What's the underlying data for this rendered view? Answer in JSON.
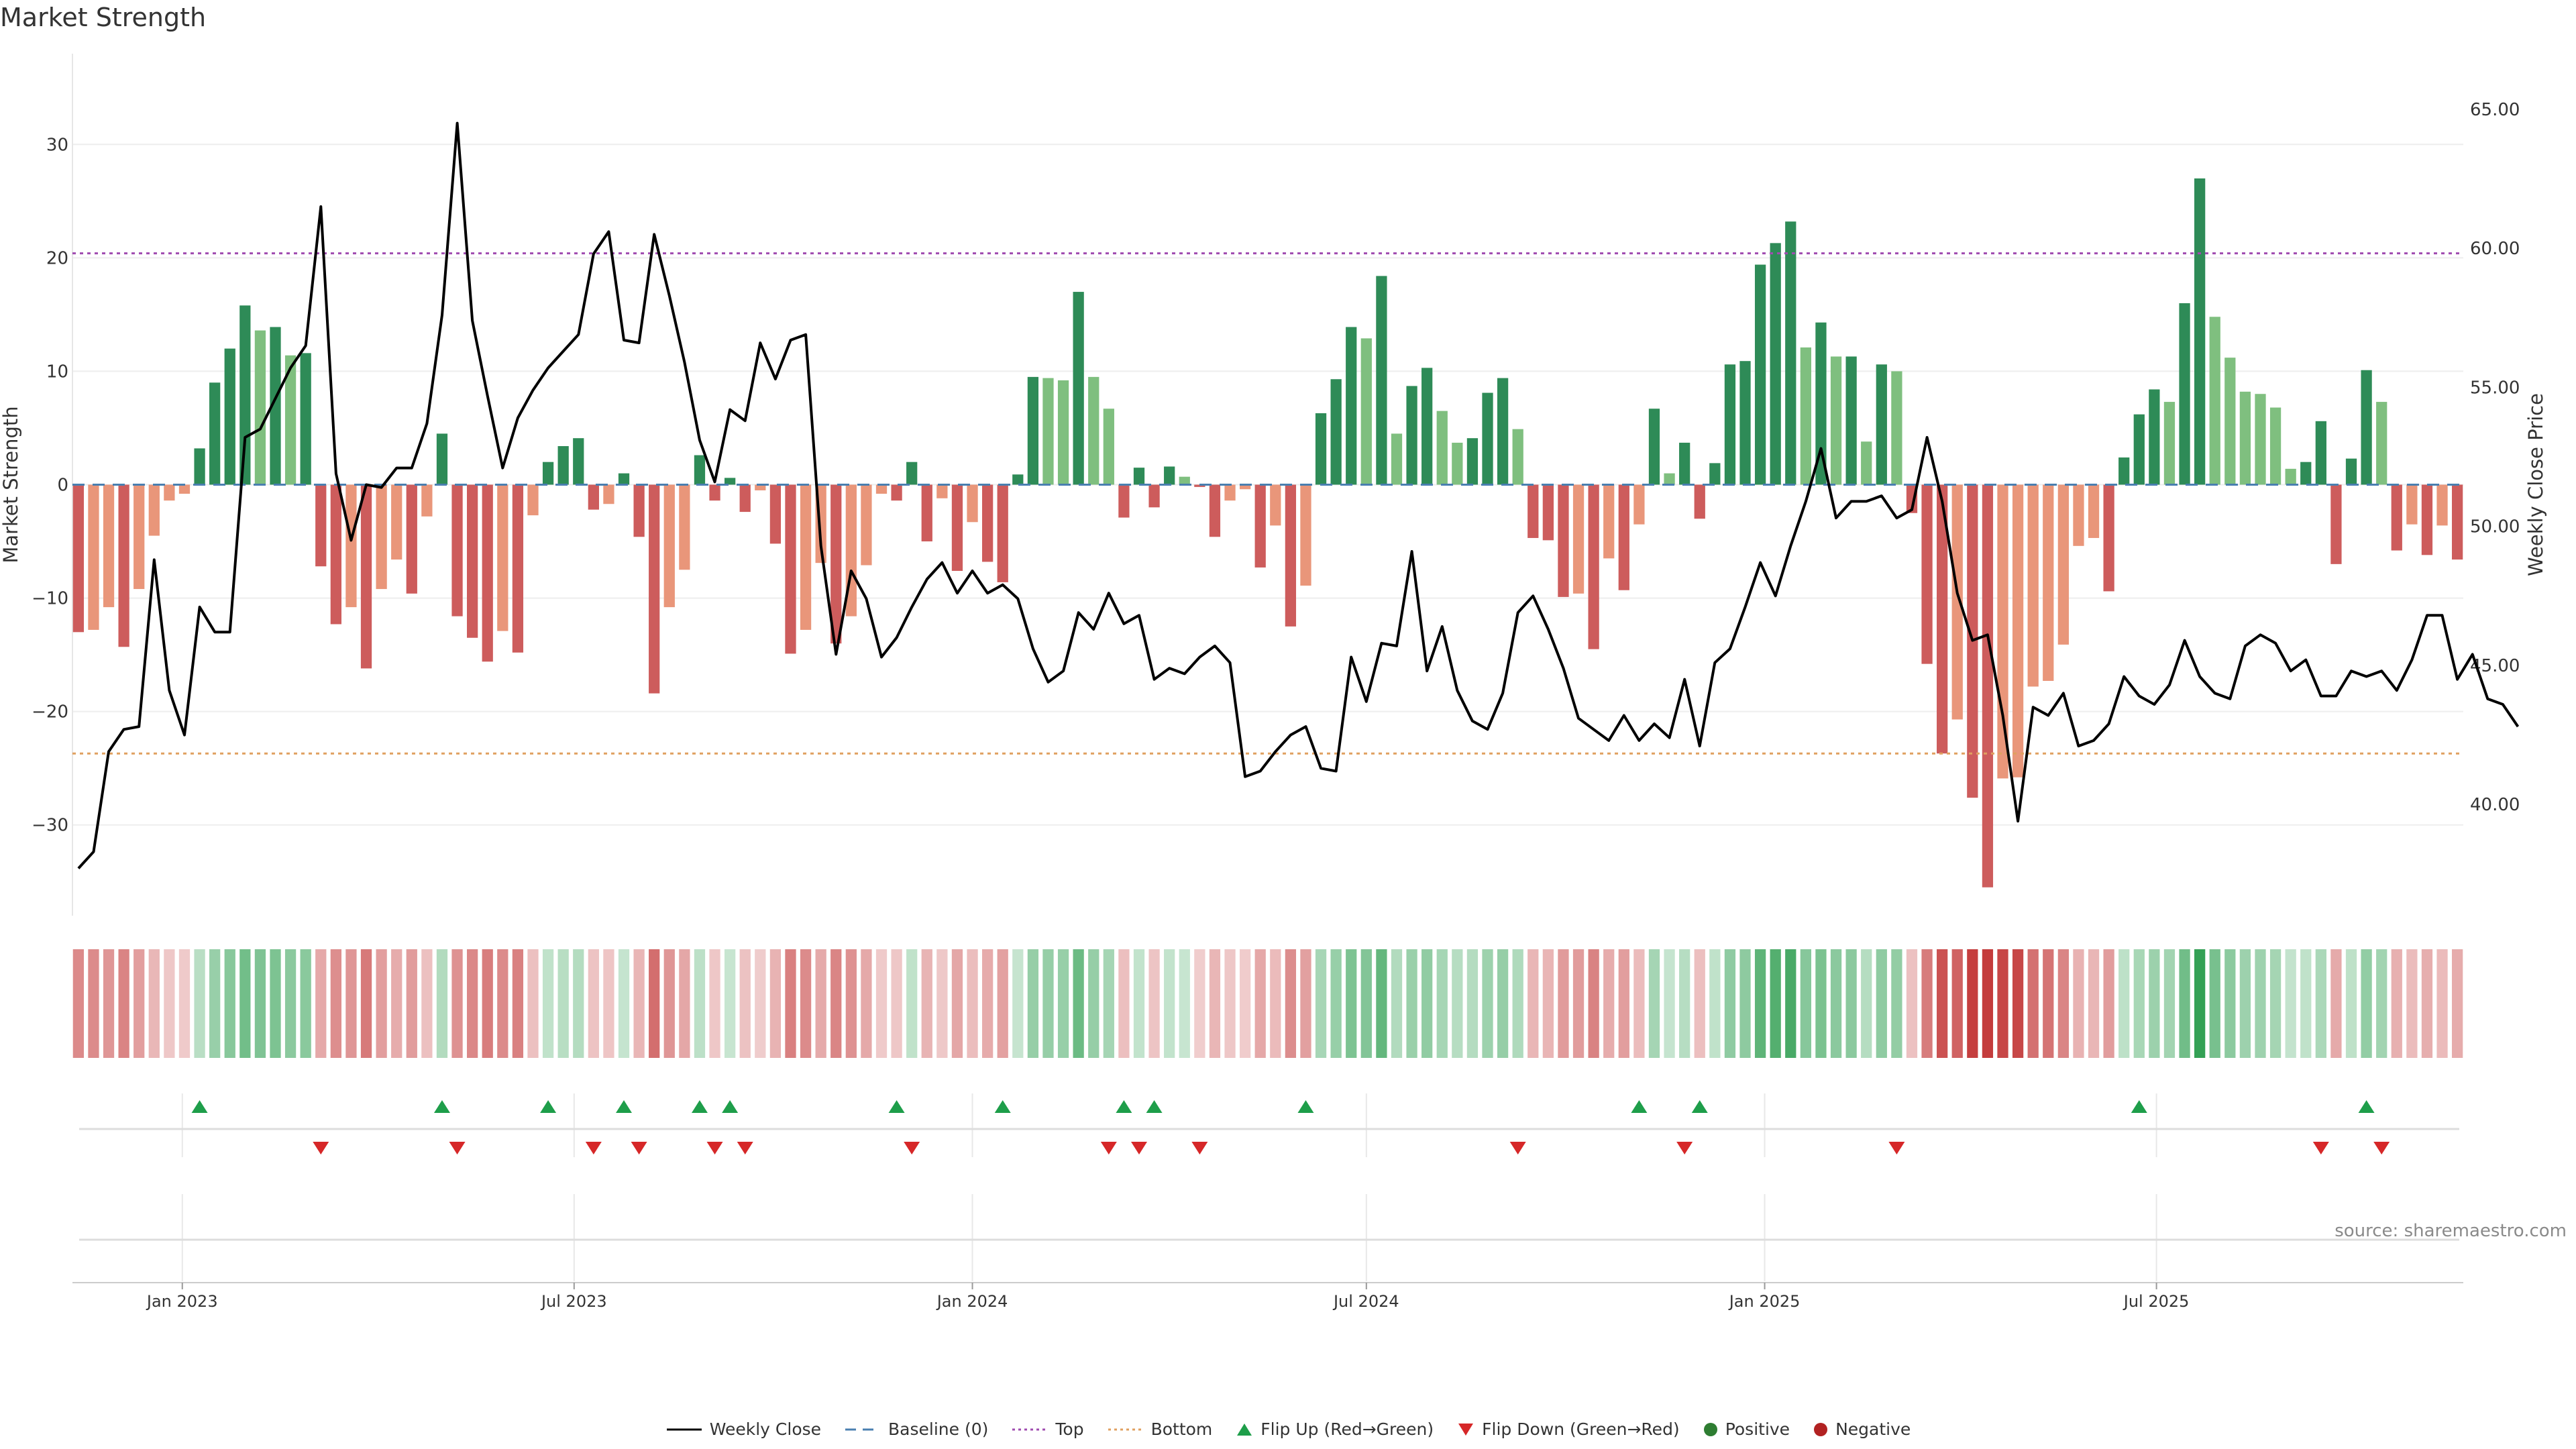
{
  "title": "Market Strength",
  "source": "source: sharemaestro.com",
  "legend": {
    "weekly_close": "Weekly Close",
    "baseline": "Baseline (0)",
    "top": "Top",
    "bottom": "Bottom",
    "flip_up": "Flip Up (Red→Green)",
    "flip_down": "Flip Down (Green→Red)",
    "positive": "Positive",
    "negative": "Negative"
  },
  "colors": {
    "pos_strong": "#2e8b57",
    "pos_light": "#7fbf7f",
    "neg_strong": "#cd5c5c",
    "neg_light": "#e9967a",
    "line": "#000000",
    "baseline": "#4a7fb0",
    "top": "#a04cb0",
    "bottom": "#e0a060",
    "flip_up": "#1e9e4a",
    "flip_down": "#d62728",
    "positive_dot": "#2e7d32",
    "negative_dot": "#b22222"
  },
  "chart_data": {
    "type": "bar",
    "title": "Market Strength",
    "ylabel": "Market Strength",
    "y2label": "Weekly Close Price",
    "ylim": [
      -38,
      38
    ],
    "y2lim": [
      36,
      67
    ],
    "yticks": [
      -30,
      -20,
      -10,
      0,
      10,
      20,
      30
    ],
    "y2ticks": [
      "40.00",
      "45.00",
      "50.00",
      "55.00",
      "60.00",
      "65.00"
    ],
    "x_start": "2022-11-14",
    "x_step_days": 7,
    "x_end": "2025-11-17",
    "x_tick_labels": [
      {
        "date": "2023-01-01",
        "label": "Jan 2023"
      },
      {
        "date": "2023-07-01",
        "label": "Jul 2023"
      },
      {
        "date": "2024-01-01",
        "label": "Jan 2024"
      },
      {
        "date": "2024-07-01",
        "label": "Jul 2024"
      },
      {
        "date": "2025-01-01",
        "label": "Jan 2025"
      },
      {
        "date": "2025-07-01",
        "label": "Jul 2025"
      }
    ],
    "top_threshold": 20.4,
    "bottom_threshold": -23.7,
    "baseline": 0,
    "strength": [
      -13,
      -12.8,
      -10.8,
      -14.3,
      -9.2,
      -4.5,
      -1.4,
      -0.8,
      3.2,
      9,
      12,
      15.8,
      13.6,
      13.9,
      11.4,
      11.6,
      -7.2,
      -12.3,
      -10.8,
      -16.2,
      -9.2,
      -6.6,
      -9.6,
      -2.8,
      4.5,
      -11.6,
      -13.5,
      -15.6,
      -12.9,
      -14.8,
      -2.7,
      2,
      3.4,
      4.1,
      -2.2,
      -1.7,
      1,
      -4.6,
      -18.4,
      -10.8,
      -7.5,
      2.6,
      -1.4,
      0.6,
      -2.4,
      -0.5,
      -5.2,
      -14.9,
      -12.8,
      -6.9,
      -14,
      -11.6,
      -7.1,
      -0.8,
      -1.4,
      2,
      -5,
      -1.2,
      -7.6,
      -3.3,
      -6.8,
      -8.6,
      0.9,
      9.5,
      9.4,
      9.2,
      17,
      9.5,
      6.7,
      -2.9,
      1.5,
      -2,
      1.6,
      0.7,
      -0.2,
      -4.6,
      -1.4,
      -0.4,
      -7.3,
      -3.6,
      -12.5,
      -8.9,
      6.3,
      9.3,
      13.9,
      12.9,
      18.4,
      4.5,
      8.7,
      10.3,
      6.5,
      3.7,
      4.1,
      8.1,
      9.4,
      4.9,
      -4.7,
      -4.9,
      -9.9,
      -9.6,
      -14.5,
      -6.5,
      -9.3,
      -3.5,
      6.7,
      1,
      3.7,
      -3,
      1.9,
      10.6,
      10.9,
      19.4,
      21.3,
      23.2,
      12.1,
      14.3,
      11.3,
      11.3,
      3.8,
      10.6,
      10,
      -2.5,
      -15.8,
      -23.7,
      -20.7,
      -27.6,
      -35.5,
      -25.9,
      -25.8,
      -17.8,
      -17.3,
      -14.1,
      -5.4,
      -4.7,
      -9.4,
      2.4,
      6.2,
      8.4,
      7.3,
      16,
      27,
      14.8,
      11.2,
      8.2,
      8,
      6.8,
      1.4,
      2,
      5.6,
      -7,
      2.3,
      10.1,
      7.3,
      -5.8,
      -3.5,
      -6.2,
      -3.6,
      -6.6
    ],
    "close": [
      37.7,
      38.3,
      41.9,
      42.7,
      42.8,
      48.8,
      44.1,
      42.5,
      47.1,
      46.2,
      46.2,
      53.2,
      53.5,
      54.6,
      55.7,
      56.5,
      61.5,
      51.9,
      49.5,
      51.5,
      51.4,
      52.1,
      52.1,
      53.7,
      57.6,
      64.5,
      57.4,
      54.7,
      52.1,
      53.9,
      54.9,
      55.7,
      56.3,
      56.9,
      59.8,
      60.6,
      56.7,
      56.6,
      60.5,
      58.3,
      55.9,
      53.1,
      51.6,
      54.2,
      53.8,
      56.6,
      55.3,
      56.7,
      56.9,
      49.3,
      45.4,
      48.4,
      47.4,
      45.3,
      46,
      47.1,
      48.1,
      48.7,
      47.6,
      48.4,
      47.6,
      47.9,
      47.4,
      45.6,
      44.4,
      44.8,
      46.9,
      46.3,
      47.6,
      46.5,
      46.8,
      44.5,
      44.9,
      44.7,
      45.3,
      45.7,
      45.1,
      41,
      41.2,
      41.9,
      42.5,
      42.8,
      41.3,
      41.2,
      45.3,
      43.7,
      45.8,
      45.7,
      49.1,
      44.8,
      46.4,
      44.1,
      43,
      42.7,
      44,
      46.9,
      47.5,
      46.3,
      44.9,
      43.1,
      42.7,
      42.3,
      43.2,
      42.3,
      42.9,
      42.4,
      44.5,
      42.1,
      45.1,
      45.6,
      47.1,
      48.7,
      47.5,
      49.3,
      50.9,
      52.8,
      50.3,
      50.9,
      50.9,
      51.1,
      50.3,
      50.6,
      53.2,
      50.9,
      47.6,
      45.9,
      46.1,
      43.2,
      39.4,
      43.5,
      43.2,
      44,
      42.1,
      42.3,
      42.9,
      44.6,
      43.9,
      43.6,
      44.3,
      45.9,
      44.6,
      44,
      43.8,
      45.7,
      46.1,
      45.8,
      44.8,
      45.2,
      43.9,
      43.9,
      44.8,
      44.6,
      44.8,
      44.1,
      45.2,
      46.8,
      46.8,
      44.5,
      45.4,
      43.8,
      43.6,
      42.8
    ],
    "flip_up_weeks": [
      8,
      24,
      31,
      36,
      41,
      43,
      54,
      61,
      69,
      71,
      81,
      103,
      107,
      136,
      151
    ],
    "flip_down_weeks": [
      16,
      25,
      34,
      37,
      42,
      44,
      55,
      68,
      70,
      74,
      95,
      106,
      120,
      148,
      152
    ]
  }
}
